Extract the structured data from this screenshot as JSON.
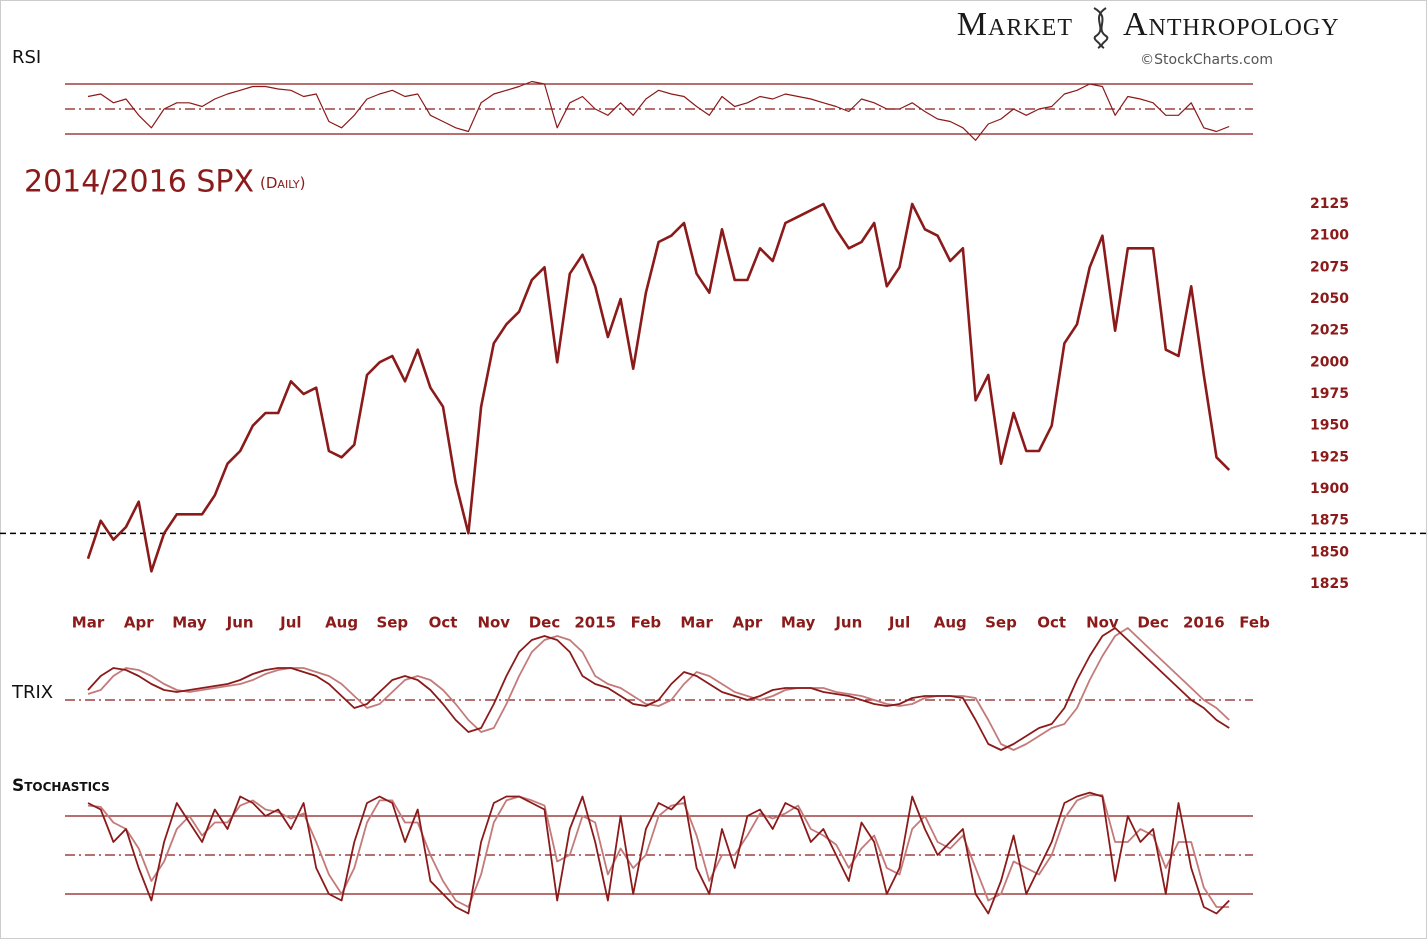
{
  "header": {
    "brand_left": "Market",
    "brand_right": "Anthropology",
    "credit": "©StockCharts.com"
  },
  "chart_data": [
    {
      "type": "line",
      "title": "RSI",
      "color": "#8b1a1a",
      "ylim": [
        20,
        80
      ],
      "hlines": [
        30,
        50,
        70
      ],
      "values": [
        60,
        62,
        55,
        58,
        45,
        35,
        50,
        55,
        55,
        52,
        58,
        62,
        65,
        68,
        68,
        66,
        65,
        60,
        62,
        40,
        35,
        45,
        58,
        62,
        65,
        60,
        62,
        45,
        40,
        35,
        32,
        55,
        62,
        65,
        68,
        72,
        70,
        35,
        55,
        60,
        50,
        45,
        55,
        45,
        58,
        65,
        62,
        60,
        52,
        45,
        60,
        52,
        55,
        60,
        58,
        62,
        60,
        58,
        55,
        52,
        48,
        58,
        55,
        50,
        50,
        55,
        48,
        42,
        40,
        35,
        25,
        38,
        42,
        50,
        45,
        50,
        52,
        62,
        65,
        70,
        68,
        45,
        60,
        58,
        55,
        45,
        45,
        55,
        35,
        32,
        36,
        null,
        null
      ]
    },
    {
      "type": "line",
      "title": "2014/2016 SPX",
      "subtitle": "(Daily)",
      "color": "#8b1a1a",
      "ylim": [
        1810,
        2140
      ],
      "yticks": [
        1825,
        1850,
        1875,
        1900,
        1925,
        1950,
        1975,
        2000,
        2025,
        2050,
        2075,
        2100,
        2125
      ],
      "hline": 1865,
      "categories": [
        "Mar",
        null,
        null,
        null,
        "Apr",
        null,
        null,
        null,
        "May",
        null,
        null,
        null,
        "Jun",
        null,
        null,
        null,
        "Jul",
        null,
        null,
        null,
        "Aug",
        null,
        null,
        null,
        "Sep",
        null,
        null,
        null,
        "Oct",
        null,
        null,
        null,
        "Nov",
        null,
        null,
        null,
        "Dec",
        null,
        null,
        null,
        "2015",
        null,
        null,
        null,
        "Feb",
        null,
        null,
        null,
        "Mar",
        null,
        null,
        null,
        "Apr",
        null,
        null,
        null,
        "May",
        null,
        null,
        null,
        "Jun",
        null,
        null,
        null,
        "Jul",
        null,
        null,
        null,
        "Aug",
        null,
        null,
        null,
        "Sep",
        null,
        null,
        null,
        "Oct",
        null,
        null,
        null,
        "Nov",
        null,
        null,
        null,
        "Dec",
        null,
        null,
        null,
        "2016",
        null,
        null,
        null,
        "Feb"
      ],
      "values": [
        1845,
        1875,
        1860,
        1870,
        1890,
        1835,
        1865,
        1880,
        1880,
        1880,
        1895,
        1920,
        1930,
        1950,
        1960,
        1960,
        1985,
        1975,
        1980,
        1930,
        1925,
        1935,
        1990,
        2000,
        2005,
        1985,
        2010,
        1980,
        1965,
        1905,
        1865,
        1965,
        2015,
        2030,
        2040,
        2065,
        2075,
        2000,
        2070,
        2085,
        2060,
        2020,
        2050,
        1995,
        2055,
        2095,
        2100,
        2110,
        2070,
        2055,
        2105,
        2065,
        2065,
        2090,
        2080,
        2110,
        2115,
        2120,
        2125,
        2105,
        2090,
        2095,
        2110,
        2060,
        2075,
        2125,
        2105,
        2100,
        2080,
        2090,
        1970,
        1990,
        1920,
        1960,
        1930,
        1930,
        1950,
        2015,
        2030,
        2075,
        2100,
        2025,
        2090,
        2090,
        2090,
        2010,
        2005,
        2060,
        1990,
        1925,
        1915,
        null,
        null
      ]
    },
    {
      "type": "line",
      "title": "TRIX",
      "ylim": [
        -0.35,
        0.4
      ],
      "hlines": [
        0
      ],
      "series": [
        {
          "color": "#8b1a1a",
          "values": [
            0.05,
            0.12,
            0.16,
            0.15,
            0.12,
            0.08,
            0.05,
            0.04,
            0.05,
            0.06,
            0.07,
            0.08,
            0.1,
            0.13,
            0.15,
            0.16,
            0.16,
            0.14,
            0.12,
            0.08,
            0.02,
            -0.04,
            -0.02,
            0.04,
            0.1,
            0.12,
            0.1,
            0.05,
            -0.02,
            -0.1,
            -0.16,
            -0.14,
            -0.02,
            0.12,
            0.24,
            0.3,
            0.32,
            0.3,
            0.24,
            0.12,
            0.08,
            0.06,
            0.02,
            -0.02,
            -0.03,
            0.0,
            0.08,
            0.14,
            0.12,
            0.08,
            0.04,
            0.02,
            0.0,
            0.02,
            0.05,
            0.06,
            0.06,
            0.06,
            0.04,
            0.03,
            0.02,
            0.0,
            -0.02,
            -0.03,
            -0.02,
            0.01,
            0.02,
            0.02,
            0.02,
            0.01,
            -0.1,
            -0.22,
            -0.25,
            -0.22,
            -0.18,
            -0.14,
            -0.12,
            -0.04,
            0.1,
            0.22,
            0.32,
            0.36,
            0.3,
            0.24,
            0.18,
            0.12,
            0.06,
            0.0,
            -0.04,
            -0.1,
            -0.14,
            null,
            null
          ]
        },
        {
          "color": "#c47a7a",
          "values": [
            0.03,
            0.05,
            0.12,
            0.16,
            0.15,
            0.12,
            0.08,
            0.05,
            0.04,
            0.05,
            0.06,
            0.07,
            0.08,
            0.1,
            0.13,
            0.15,
            0.16,
            0.16,
            0.14,
            0.12,
            0.08,
            0.02,
            -0.04,
            -0.02,
            0.04,
            0.1,
            0.12,
            0.1,
            0.05,
            -0.02,
            -0.1,
            -0.16,
            -0.14,
            -0.02,
            0.12,
            0.24,
            0.3,
            0.32,
            0.3,
            0.24,
            0.12,
            0.08,
            0.06,
            0.02,
            -0.02,
            -0.03,
            0.0,
            0.08,
            0.14,
            0.12,
            0.08,
            0.04,
            0.02,
            0.0,
            0.02,
            0.05,
            0.06,
            0.06,
            0.06,
            0.04,
            0.03,
            0.02,
            0.0,
            -0.02,
            -0.03,
            -0.02,
            0.01,
            0.02,
            0.02,
            0.02,
            0.01,
            -0.1,
            -0.22,
            -0.25,
            -0.22,
            -0.18,
            -0.14,
            -0.12,
            -0.04,
            0.1,
            0.22,
            0.32,
            0.36,
            0.3,
            0.24,
            0.18,
            0.12,
            0.06,
            0.0,
            -0.04,
            -0.1,
            null,
            null
          ]
        }
      ]
    },
    {
      "type": "line",
      "title": "Stochastics",
      "ylim": [
        0,
        100
      ],
      "hlines": [
        20,
        50,
        80
      ],
      "series": [
        {
          "color": "#8b1a1a",
          "values": [
            90,
            85,
            60,
            70,
            40,
            15,
            60,
            90,
            75,
            60,
            85,
            70,
            95,
            90,
            80,
            85,
            70,
            90,
            40,
            20,
            15,
            60,
            90,
            95,
            90,
            60,
            85,
            30,
            20,
            10,
            5,
            60,
            90,
            95,
            95,
            90,
            85,
            15,
            70,
            95,
            60,
            15,
            80,
            20,
            70,
            90,
            85,
            95,
            40,
            20,
            70,
            40,
            80,
            85,
            70,
            90,
            85,
            60,
            70,
            50,
            30,
            75,
            60,
            20,
            40,
            95,
            70,
            50,
            60,
            70,
            20,
            5,
            30,
            65,
            20,
            40,
            60,
            90,
            95,
            98,
            95,
            30,
            80,
            60,
            70,
            20,
            90,
            40,
            10,
            5,
            15,
            null,
            null
          ]
        },
        {
          "color": "#c47a7a",
          "values": [
            88,
            87,
            75,
            70,
            55,
            30,
            45,
            70,
            80,
            65,
            75,
            75,
            88,
            92,
            85,
            83,
            78,
            82,
            60,
            35,
            20,
            40,
            75,
            92,
            92,
            75,
            75,
            50,
            30,
            15,
            10,
            35,
            75,
            92,
            95,
            92,
            88,
            45,
            50,
            80,
            75,
            35,
            55,
            40,
            50,
            80,
            88,
            90,
            65,
            30,
            50,
            50,
            65,
            82,
            78,
            82,
            88,
            70,
            65,
            58,
            40,
            55,
            65,
            40,
            35,
            70,
            80,
            60,
            55,
            65,
            40,
            15,
            20,
            45,
            40,
            35,
            50,
            78,
            92,
            96,
            96,
            60,
            60,
            70,
            65,
            40,
            60,
            60,
            25,
            10,
            10,
            null,
            null
          ]
        }
      ]
    }
  ]
}
